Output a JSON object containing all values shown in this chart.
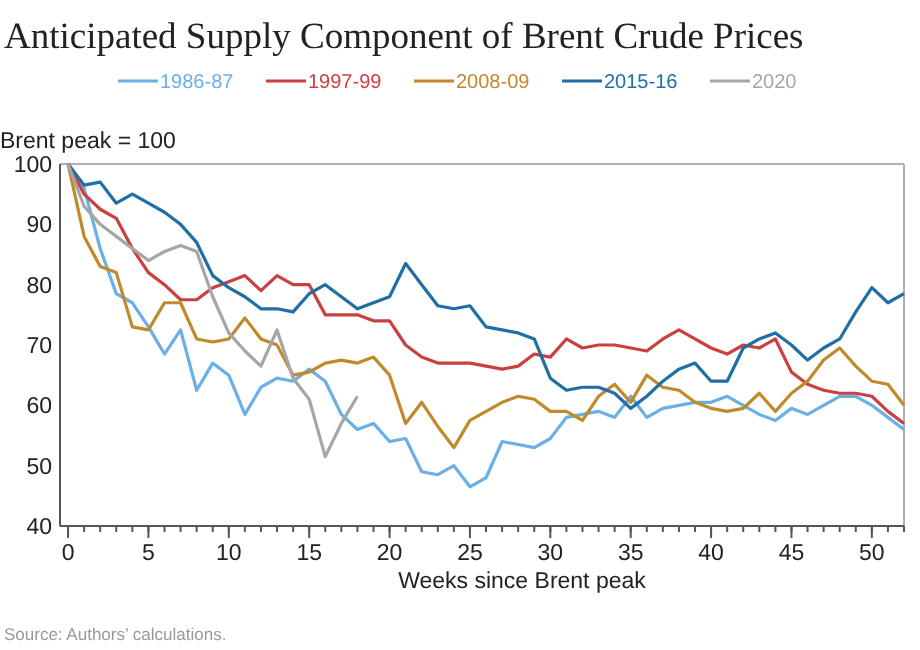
{
  "chart_data": {
    "type": "line",
    "title": "Anticipated Supply Component of Brent Crude Prices",
    "ylabel": "Brent peak = 100",
    "xlabel": "Weeks since Brent peak",
    "annotations": [
      "Source: Authors’ calculations."
    ],
    "legend": "top",
    "grid": false,
    "marker": "none",
    "line_style": "solid",
    "xlim": [
      -0.5,
      52
    ],
    "xticks": [
      0,
      5,
      10,
      15,
      20,
      25,
      30,
      35,
      40,
      45,
      50
    ],
    "ylim": [
      40,
      100
    ],
    "yticks": [
      40,
      50,
      60,
      70,
      80,
      90,
      100
    ],
    "series": [
      {
        "name": "1986-87",
        "color": "#6ab0e6",
        "x": [
          0,
          1,
          2,
          3,
          4,
          5,
          6,
          7,
          8,
          9,
          10,
          11,
          12,
          13,
          14,
          15,
          16,
          17,
          18,
          19,
          20,
          21,
          22,
          23,
          24,
          25,
          26,
          27,
          28,
          29,
          30,
          31,
          32,
          33,
          34,
          35,
          36,
          37,
          38,
          39,
          40,
          41,
          42,
          43,
          44,
          45,
          46,
          47,
          48,
          49,
          50,
          51,
          52
        ],
        "values": [
          100,
          96,
          86,
          78.5,
          77,
          73,
          68.5,
          72.5,
          62.5,
          67,
          65,
          58.5,
          63,
          64.5,
          64,
          66,
          64,
          58.5,
          56,
          57,
          54,
          54.5,
          49,
          48.5,
          50,
          46.5,
          48,
          54,
          53.5,
          53,
          54.5,
          58,
          58.5,
          59,
          58,
          61.5,
          58,
          59.5,
          60,
          60.5,
          60.5,
          61.5,
          60,
          58.5,
          57.5,
          59.5,
          58.5,
          60,
          61.5,
          61.5,
          60,
          58,
          56
        ]
      },
      {
        "name": "1997-99",
        "color": "#cc3f3f",
        "x": [
          0,
          1,
          2,
          3,
          4,
          5,
          6,
          7,
          8,
          9,
          10,
          11,
          12,
          13,
          14,
          15,
          16,
          17,
          18,
          19,
          20,
          21,
          22,
          23,
          24,
          25,
          26,
          27,
          28,
          29,
          30,
          31,
          32,
          33,
          34,
          35,
          36,
          37,
          38,
          39,
          40,
          41,
          42,
          43,
          44,
          45,
          46,
          47,
          48,
          49,
          50,
          51,
          52
        ],
        "values": [
          100,
          95,
          92.5,
          91,
          86,
          82,
          80,
          77.5,
          77.5,
          79.5,
          80.5,
          81.5,
          79,
          81.5,
          80,
          80,
          75,
          75,
          75,
          74,
          74,
          70,
          68,
          67,
          67,
          67,
          66.5,
          66,
          66.5,
          68.5,
          68,
          71,
          69.5,
          70,
          70,
          69.5,
          69,
          71,
          72.5,
          71,
          69.5,
          68.5,
          70,
          69.5,
          71,
          65.5,
          63.5,
          62.5,
          62,
          62,
          61.5,
          59,
          57
        ]
      },
      {
        "name": "2008-09",
        "color": "#c08a2a",
        "x": [
          0,
          1,
          2,
          3,
          4,
          5,
          6,
          7,
          8,
          9,
          10,
          11,
          12,
          13,
          14,
          15,
          16,
          17,
          18,
          19,
          20,
          21,
          22,
          23,
          24,
          25,
          26,
          27,
          28,
          29,
          30,
          31,
          32,
          33,
          34,
          35,
          36,
          37,
          38,
          39,
          40,
          41,
          42,
          43,
          44,
          45,
          46,
          47,
          48,
          49,
          50,
          51,
          52
        ],
        "values": [
          100,
          88,
          83,
          82,
          73,
          72.5,
          77,
          77,
          71,
          70.5,
          71,
          74.5,
          71,
          70,
          65,
          65.5,
          67,
          67.5,
          67,
          68,
          65,
          57,
          60.5,
          56.5,
          53,
          57.5,
          59,
          60.5,
          61.5,
          61,
          59,
          59,
          57.5,
          61.5,
          63.5,
          60.5,
          65,
          63,
          62.5,
          60.5,
          59.5,
          59,
          59.5,
          62,
          59,
          62,
          64,
          67.5,
          69.5,
          66.5,
          64,
          63.5,
          60
        ]
      },
      {
        "name": "2015-16",
        "color": "#1f6ea6",
        "x": [
          0,
          1,
          2,
          3,
          4,
          5,
          6,
          7,
          8,
          9,
          10,
          11,
          12,
          13,
          14,
          15,
          16,
          17,
          18,
          19,
          20,
          21,
          22,
          23,
          24,
          25,
          26,
          27,
          28,
          29,
          30,
          31,
          32,
          33,
          34,
          35,
          36,
          37,
          38,
          39,
          40,
          41,
          42,
          43,
          44,
          45,
          46,
          47,
          48,
          49,
          50,
          51,
          52
        ],
        "values": [
          100,
          96.5,
          97,
          93.5,
          95,
          93.5,
          92,
          90,
          87,
          81.5,
          79.5,
          78,
          76,
          76,
          75.5,
          78.5,
          80,
          78,
          76,
          77,
          78,
          83.5,
          80,
          76.5,
          76,
          76.5,
          73,
          72.5,
          72,
          71,
          64.5,
          62.5,
          63,
          63,
          62,
          59.5,
          61.5,
          64,
          66,
          67,
          64,
          64,
          69.5,
          71,
          72,
          70,
          67.5,
          69.5,
          71,
          75.5,
          79.5,
          77,
          78.5
        ]
      },
      {
        "name": "2020",
        "color": "#a6a6a6",
        "x": [
          0,
          1,
          2,
          3,
          4,
          5,
          6,
          7,
          8,
          9,
          10,
          11,
          12,
          13,
          14,
          15,
          16,
          17,
          18
        ],
        "values": [
          100,
          93,
          90,
          88,
          86,
          84,
          85.5,
          86.5,
          85.5,
          78,
          72,
          69,
          66.5,
          72.5,
          64.5,
          61,
          51.5,
          57,
          61.5
        ]
      }
    ]
  }
}
